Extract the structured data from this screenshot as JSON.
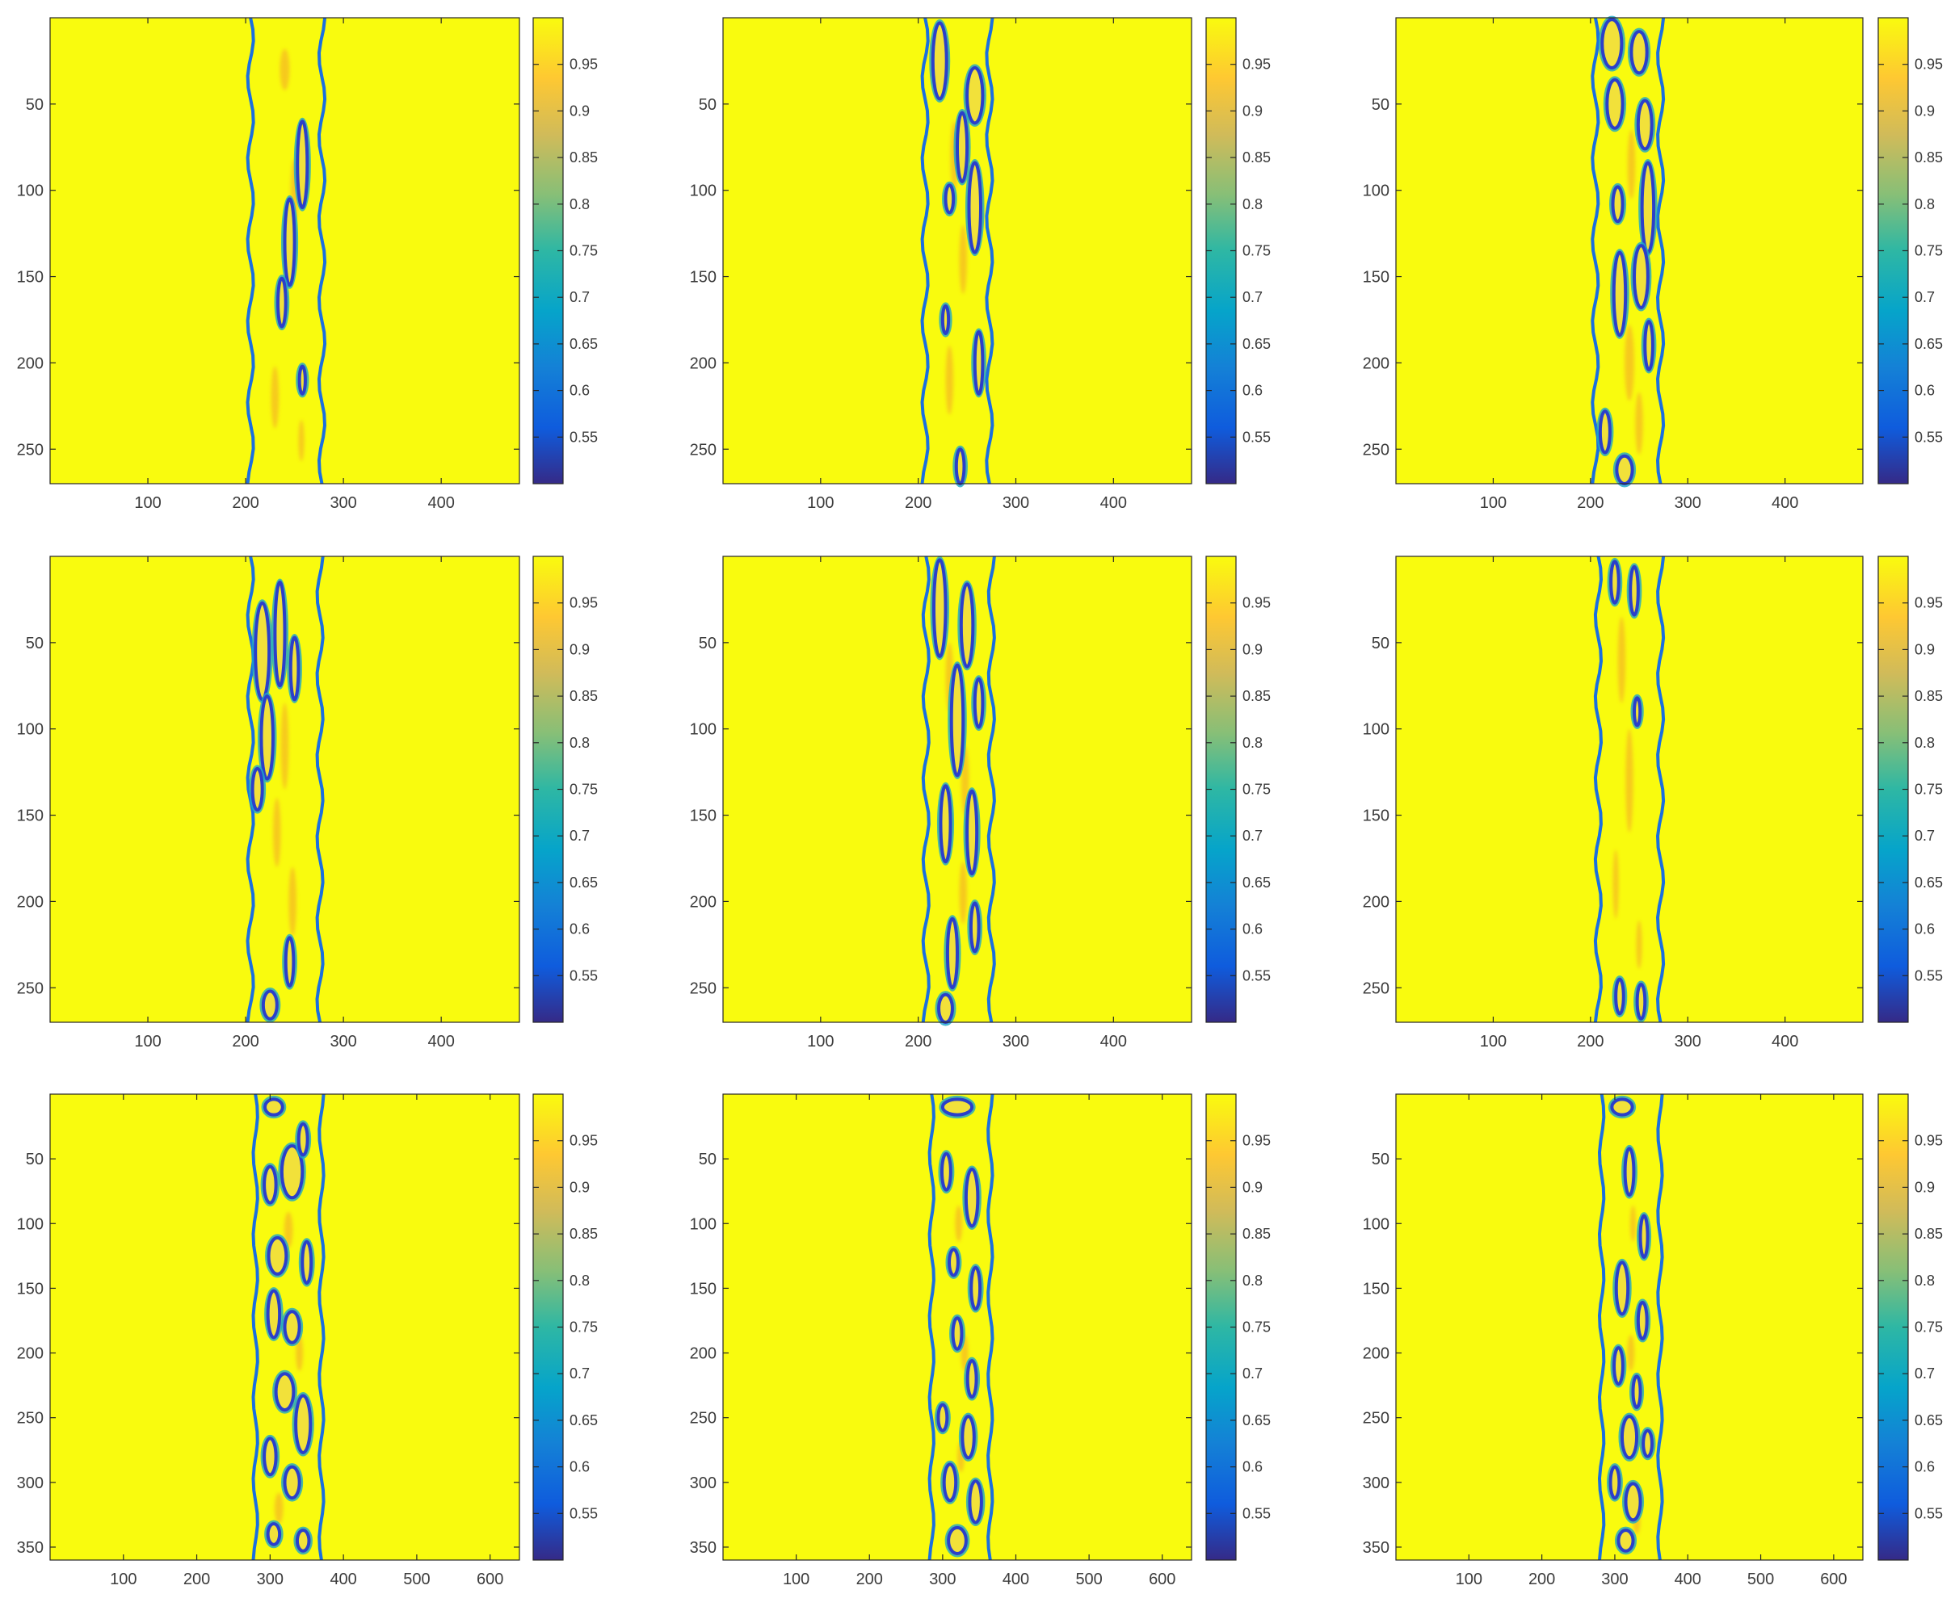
{
  "figure": {
    "colormap": "parula",
    "background_color": "#F9FB0E",
    "axis_color": "#262626"
  },
  "colorbar": {
    "range": [
      0.5,
      1.0
    ],
    "ticks": [
      0.55,
      0.6,
      0.65,
      0.7,
      0.75,
      0.8,
      0.85,
      0.9,
      0.95
    ],
    "tick_labels": [
      "0.55",
      "0.6",
      "0.65",
      "0.7",
      "0.75",
      "0.8",
      "0.85",
      "0.9",
      "0.95"
    ]
  },
  "chart_data": [
    {
      "type": "heatmap",
      "row": 1,
      "col": 1,
      "xlim": [
        0,
        480
      ],
      "ylim": [
        270,
        0
      ],
      "y_reversed": true,
      "xticks": [
        100,
        200,
        300,
        400
      ],
      "xtick_labels": [
        "100",
        "200",
        "300",
        "400"
      ],
      "yticks": [
        50,
        100,
        150,
        200,
        250
      ],
      "ytick_labels": [
        "50",
        "100",
        "150",
        "200",
        "250"
      ],
      "band_x": [
        205,
        278
      ],
      "contours": [
        [
          258,
          85,
          5,
          25
        ],
        [
          245,
          130,
          5,
          25
        ],
        [
          237,
          165,
          4,
          14
        ],
        [
          258,
          210,
          3,
          8
        ]
      ],
      "warm_spots": [
        [
          240,
          30,
          5,
          12
        ],
        [
          250,
          100,
          4,
          18
        ],
        [
          230,
          220,
          4,
          18
        ],
        [
          257,
          245,
          3,
          12
        ]
      ]
    },
    {
      "type": "heatmap",
      "row": 1,
      "col": 2,
      "xlim": [
        0,
        480
      ],
      "ylim": [
        270,
        0
      ],
      "y_reversed": true,
      "xticks": [
        100,
        200,
        300,
        400
      ],
      "xtick_labels": [
        "100",
        "200",
        "300",
        "400"
      ],
      "yticks": [
        50,
        100,
        150,
        200,
        250
      ],
      "ytick_labels": [
        "50",
        "100",
        "150",
        "200",
        "250"
      ],
      "band_x": [
        207,
        273
      ],
      "contours": [
        [
          222,
          25,
          7,
          22
        ],
        [
          258,
          45,
          8,
          16
        ],
        [
          245,
          75,
          5,
          20
        ],
        [
          258,
          110,
          6,
          26
        ],
        [
          232,
          105,
          4,
          8
        ],
        [
          228,
          175,
          3,
          8
        ],
        [
          262,
          200,
          4,
          18
        ],
        [
          243,
          260,
          4,
          10
        ]
      ],
      "warm_spots": [
        [
          237,
          80,
          4,
          20
        ],
        [
          246,
          140,
          4,
          20
        ],
        [
          232,
          210,
          4,
          20
        ]
      ]
    },
    {
      "type": "heatmap",
      "row": 1,
      "col": 3,
      "xlim": [
        0,
        480
      ],
      "ylim": [
        270,
        0
      ],
      "y_reversed": true,
      "xticks": [
        100,
        200,
        300,
        400
      ],
      "xtick_labels": [
        "100",
        "200",
        "300",
        "400"
      ],
      "yticks": [
        50,
        100,
        150,
        200,
        250
      ],
      "ytick_labels": [
        "50",
        "100",
        "150",
        "200",
        "250"
      ],
      "band_x": [
        205,
        272
      ],
      "contours": [
        [
          222,
          15,
          10,
          14
        ],
        [
          250,
          20,
          8,
          12
        ],
        [
          225,
          50,
          8,
          14
        ],
        [
          256,
          62,
          7,
          14
        ],
        [
          228,
          108,
          5,
          10
        ],
        [
          259,
          110,
          6,
          26
        ],
        [
          230,
          160,
          6,
          24
        ],
        [
          252,
          150,
          7,
          18
        ],
        [
          260,
          190,
          4,
          14
        ],
        [
          215,
          240,
          5,
          12
        ],
        [
          235,
          262,
          8,
          8
        ]
      ],
      "warm_spots": [
        [
          242,
          85,
          4,
          20
        ],
        [
          240,
          200,
          5,
          22
        ],
        [
          250,
          235,
          4,
          18
        ]
      ]
    },
    {
      "type": "heatmap",
      "row": 2,
      "col": 1,
      "xlim": [
        0,
        480
      ],
      "ylim": [
        270,
        0
      ],
      "y_reversed": true,
      "xticks": [
        100,
        200,
        300,
        400
      ],
      "xtick_labels": [
        "100",
        "200",
        "300",
        "400"
      ],
      "yticks": [
        50,
        100,
        150,
        200,
        250
      ],
      "ytick_labels": [
        "50",
        "100",
        "150",
        "200",
        "250"
      ],
      "band_x": [
        205,
        276
      ],
      "contours": [
        [
          217,
          55,
          7,
          28
        ],
        [
          235,
          45,
          5,
          30
        ],
        [
          222,
          105,
          6,
          24
        ],
        [
          250,
          65,
          4,
          18
        ],
        [
          212,
          135,
          5,
          12
        ],
        [
          245,
          235,
          4,
          14
        ],
        [
          225,
          260,
          7,
          8
        ]
      ],
      "warm_spots": [
        [
          240,
          110,
          4,
          25
        ],
        [
          232,
          160,
          4,
          20
        ],
        [
          248,
          200,
          4,
          20
        ]
      ]
    },
    {
      "type": "heatmap",
      "row": 2,
      "col": 2,
      "xlim": [
        0,
        480
      ],
      "ylim": [
        270,
        0
      ],
      "y_reversed": true,
      "xticks": [
        100,
        200,
        300,
        400
      ],
      "xtick_labels": [
        "100",
        "200",
        "300",
        "400"
      ],
      "yticks": [
        50,
        100,
        150,
        200,
        250
      ],
      "ytick_labels": [
        "50",
        "100",
        "150",
        "200",
        "250"
      ],
      "band_x": [
        208,
        275
      ],
      "contours": [
        [
          222,
          30,
          6,
          28
        ],
        [
          250,
          40,
          6,
          24
        ],
        [
          240,
          95,
          6,
          32
        ],
        [
          262,
          85,
          4,
          14
        ],
        [
          228,
          155,
          5,
          22
        ],
        [
          255,
          160,
          5,
          24
        ],
        [
          235,
          230,
          5,
          20
        ],
        [
          258,
          215,
          4,
          14
        ],
        [
          228,
          262,
          7,
          8
        ]
      ],
      "warm_spots": [
        [
          232,
          70,
          4,
          20
        ],
        [
          248,
          130,
          4,
          20
        ],
        [
          246,
          195,
          4,
          18
        ]
      ]
    },
    {
      "type": "heatmap",
      "row": 2,
      "col": 3,
      "xlim": [
        0,
        480
      ],
      "ylim": [
        270,
        0
      ],
      "y_reversed": true,
      "xticks": [
        100,
        200,
        300,
        400
      ],
      "xtick_labels": [
        "100",
        "200",
        "300",
        "400"
      ],
      "yticks": [
        50,
        100,
        150,
        200,
        250
      ],
      "ytick_labels": [
        "50",
        "100",
        "150",
        "200",
        "250"
      ],
      "band_x": [
        208,
        272
      ],
      "contours": [
        [
          225,
          15,
          4,
          12
        ],
        [
          245,
          20,
          4,
          14
        ],
        [
          248,
          90,
          3,
          8
        ],
        [
          230,
          255,
          4,
          10
        ],
        [
          252,
          258,
          4,
          10
        ]
      ],
      "warm_spots": [
        [
          232,
          60,
          4,
          25
        ],
        [
          240,
          130,
          4,
          30
        ],
        [
          226,
          190,
          3,
          20
        ],
        [
          250,
          225,
          3,
          14
        ]
      ]
    },
    {
      "type": "heatmap",
      "row": 3,
      "col": 1,
      "xlim": [
        0,
        640
      ],
      "ylim": [
        360,
        0
      ],
      "y_reversed": true,
      "xticks": [
        100,
        200,
        300,
        400,
        500,
        600
      ],
      "xtick_labels": [
        "100",
        "200",
        "300",
        "400",
        "500",
        "600"
      ],
      "yticks": [
        50,
        100,
        150,
        200,
        250,
        300,
        350
      ],
      "ytick_labels": [
        "50",
        "100",
        "150",
        "200",
        "250",
        "300",
        "350"
      ],
      "band_x": [
        280,
        370
      ],
      "contours": [
        [
          305,
          10,
          12,
          6
        ],
        [
          330,
          60,
          14,
          20
        ],
        [
          300,
          70,
          8,
          14
        ],
        [
          345,
          35,
          6,
          12
        ],
        [
          310,
          125,
          12,
          14
        ],
        [
          350,
          130,
          6,
          16
        ],
        [
          305,
          170,
          8,
          18
        ],
        [
          330,
          180,
          10,
          12
        ],
        [
          320,
          230,
          12,
          14
        ],
        [
          345,
          255,
          10,
          22
        ],
        [
          300,
          280,
          8,
          14
        ],
        [
          330,
          300,
          10,
          12
        ],
        [
          305,
          340,
          8,
          8
        ],
        [
          345,
          345,
          8,
          8
        ]
      ],
      "warm_spots": [
        [
          325,
          105,
          6,
          14
        ],
        [
          340,
          200,
          5,
          14
        ],
        [
          312,
          320,
          6,
          12
        ]
      ]
    },
    {
      "type": "heatmap",
      "row": 3,
      "col": 2,
      "xlim": [
        0,
        640
      ],
      "ylim": [
        360,
        0
      ],
      "y_reversed": true,
      "xticks": [
        100,
        200,
        300,
        400,
        500,
        600
      ],
      "xtick_labels": [
        "100",
        "200",
        "300",
        "400",
        "500",
        "600"
      ],
      "yticks": [
        50,
        100,
        150,
        200,
        250,
        300,
        350
      ],
      "ytick_labels": [
        "50",
        "100",
        "150",
        "200",
        "250",
        "300",
        "350"
      ],
      "band_x": [
        285,
        365
      ],
      "contours": [
        [
          320,
          10,
          20,
          6
        ],
        [
          305,
          60,
          6,
          14
        ],
        [
          340,
          80,
          8,
          22
        ],
        [
          315,
          130,
          6,
          10
        ],
        [
          345,
          150,
          6,
          16
        ],
        [
          320,
          185,
          6,
          12
        ],
        [
          340,
          220,
          6,
          14
        ],
        [
          300,
          250,
          6,
          10
        ],
        [
          335,
          265,
          8,
          16
        ],
        [
          310,
          300,
          8,
          14
        ],
        [
          345,
          315,
          8,
          16
        ],
        [
          320,
          345,
          12,
          10
        ]
      ],
      "warm_spots": [
        [
          322,
          100,
          5,
          14
        ],
        [
          330,
          200,
          5,
          14
        ],
        [
          325,
          280,
          5,
          12
        ]
      ]
    },
    {
      "type": "heatmap",
      "row": 3,
      "col": 3,
      "xlim": [
        0,
        640
      ],
      "ylim": [
        360,
        0
      ],
      "y_reversed": true,
      "xticks": [
        100,
        200,
        300,
        400,
        500,
        600
      ],
      "xtick_labels": [
        "100",
        "200",
        "300",
        "400",
        "500",
        "600"
      ],
      "yticks": [
        50,
        100,
        150,
        200,
        250,
        300,
        350
      ],
      "ytick_labels": [
        "50",
        "100",
        "150",
        "200",
        "250",
        "300",
        "350"
      ],
      "band_x": [
        282,
        362
      ],
      "contours": [
        [
          310,
          10,
          14,
          6
        ],
        [
          320,
          60,
          6,
          18
        ],
        [
          340,
          110,
          5,
          16
        ],
        [
          310,
          150,
          8,
          20
        ],
        [
          338,
          175,
          6,
          14
        ],
        [
          305,
          210,
          6,
          14
        ],
        [
          330,
          230,
          5,
          12
        ],
        [
          320,
          265,
          10,
          16
        ],
        [
          345,
          270,
          6,
          10
        ],
        [
          300,
          300,
          6,
          12
        ],
        [
          325,
          315,
          10,
          14
        ],
        [
          315,
          345,
          10,
          8
        ]
      ],
      "warm_spots": [
        [
          325,
          100,
          4,
          14
        ],
        [
          322,
          200,
          5,
          14
        ],
        [
          330,
          330,
          5,
          10
        ]
      ]
    }
  ]
}
